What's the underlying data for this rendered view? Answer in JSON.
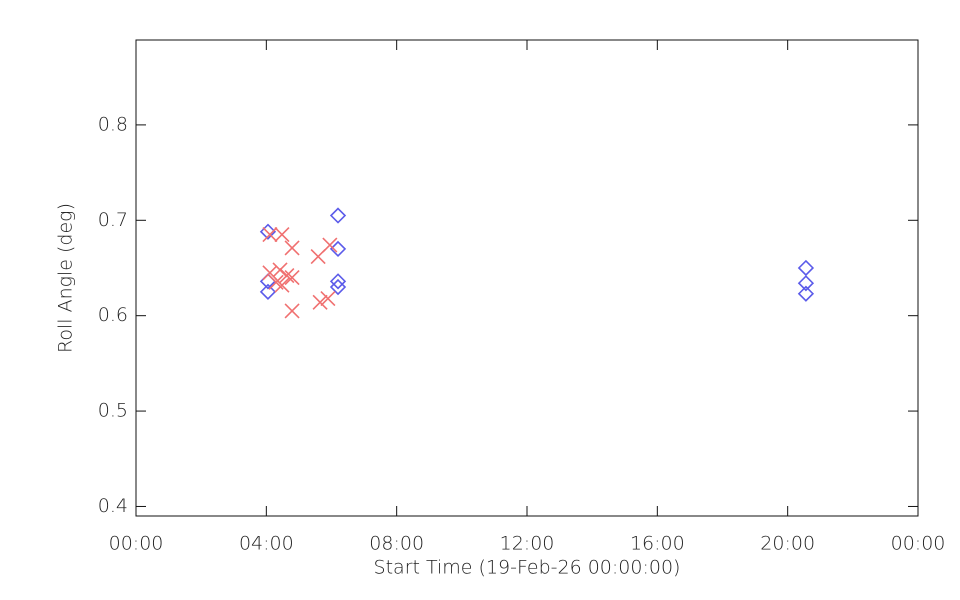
{
  "chart_data": {
    "type": "scatter",
    "xlabel": "Start Time (19-Feb-26 00:00:00)",
    "ylabel": "Roll Angle (deg)",
    "xlim": [
      0,
      24
    ],
    "xticks": [
      {
        "value": 0,
        "label": "00:00"
      },
      {
        "value": 4,
        "label": "04:00"
      },
      {
        "value": 8,
        "label": "08:00"
      },
      {
        "value": 12,
        "label": "12:00"
      },
      {
        "value": 16,
        "label": "16:00"
      },
      {
        "value": 20,
        "label": "20:00"
      },
      {
        "value": 24,
        "label": "00:00"
      }
    ],
    "ylim": [
      0.39,
      0.889
    ],
    "yticks": [
      0.4,
      0.5,
      0.6,
      0.7,
      0.8
    ],
    "series": [
      {
        "marker": "diamond",
        "color": "#5b5bea",
        "x": [
          4.05,
          4.05,
          4.05,
          6.2,
          6.2,
          6.2,
          6.2,
          20.56,
          20.56,
          20.56
        ],
        "values": [
          0.688,
          0.636,
          0.625,
          0.705,
          0.67,
          0.636,
          0.63,
          0.65,
          0.634,
          0.623
        ]
      },
      {
        "marker": "x",
        "color": "#f07070",
        "x": [
          4.11,
          4.48,
          4.11,
          4.42,
          4.3,
          4.48,
          4.63,
          4.79,
          4.79,
          4.79,
          5.59,
          5.95,
          5.65,
          5.89
        ],
        "values": [
          0.685,
          0.685,
          0.645,
          0.648,
          0.635,
          0.632,
          0.642,
          0.671,
          0.64,
          0.605,
          0.662,
          0.674,
          0.614,
          0.618
        ]
      }
    ]
  }
}
